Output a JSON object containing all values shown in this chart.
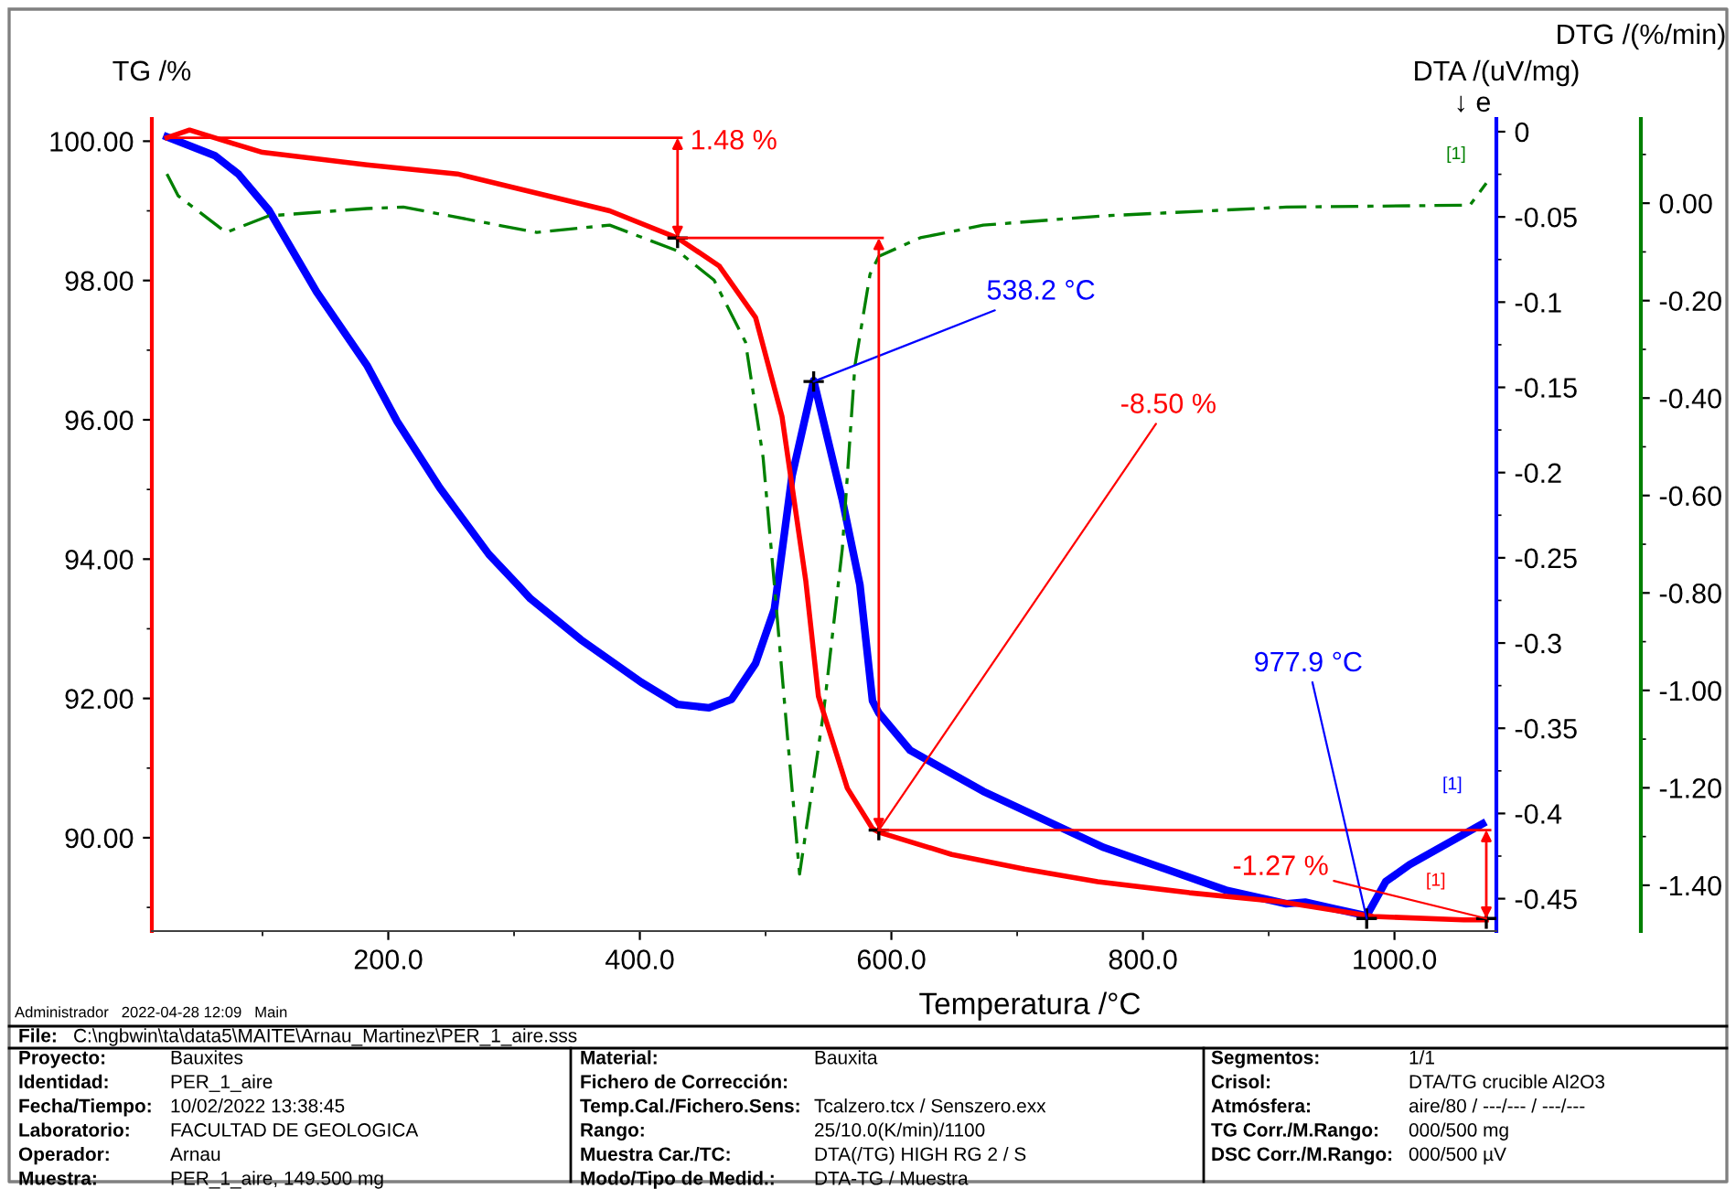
{
  "chart_data": {
    "type": "line",
    "xlabel": "Temperatura /°C",
    "ylabel": "TG /%",
    "y2label": "DTA /(uV/mg)",
    "y3label": "DTG /(%/min)",
    "xlim": [
      12,
      1081
    ],
    "ylim": [
      88.66,
      100.32
    ],
    "y2lim": [
      -0.469,
      0.0075
    ],
    "y3lim": [
      -1.494,
      0.173
    ],
    "xticks": [
      {
        "value": 200,
        "label": "200.0"
      },
      {
        "value": 400,
        "label": "400.0"
      },
      {
        "value": 600,
        "label": "600.0"
      },
      {
        "value": 800,
        "label": "800.0"
      },
      {
        "value": 1000,
        "label": "1000.0"
      }
    ],
    "yticks": [
      {
        "value": 90,
        "label": "90.00"
      },
      {
        "value": 92,
        "label": "92.00"
      },
      {
        "value": 94,
        "label": "94.00"
      },
      {
        "value": 96,
        "label": "96.00"
      },
      {
        "value": 98,
        "label": "98.00"
      },
      {
        "value": 100,
        "label": "100.00"
      }
    ],
    "y2ticks": [
      0,
      -0.05,
      -0.1,
      -0.15,
      -0.2,
      -0.25,
      -0.3,
      -0.35,
      -0.4,
      -0.45
    ],
    "y3ticks": [
      {
        "value": 0,
        "label": "0.00"
      },
      {
        "value": -0.2,
        "label": "-0.20"
      },
      {
        "value": -0.4,
        "label": "-0.40"
      },
      {
        "value": -0.6,
        "label": "-0.60"
      },
      {
        "value": -0.8,
        "label": "-0.80"
      },
      {
        "value": -1.0,
        "label": "-1.00"
      },
      {
        "value": -1.2,
        "label": "-1.20"
      },
      {
        "value": -1.4,
        "label": "-1.40"
      }
    ],
    "grid": false,
    "legend": false,
    "marker": "none",
    "series": [
      {
        "color": "#ff0000",
        "line_style": "solid",
        "x": [
          24,
          42,
          76,
          100,
          183,
          255,
          328,
          376,
          430,
          463,
          492,
          513,
          532,
          542,
          565,
          585,
          590,
          648,
          706,
          764,
          837,
          910,
          983,
          1055,
          1073
        ],
        "values": [
          100.05,
          100.16,
          99.97,
          99.84,
          99.66,
          99.53,
          99.21,
          99.0,
          98.61,
          98.21,
          97.47,
          96.05,
          93.68,
          92.03,
          90.71,
          90.13,
          90.08,
          89.76,
          89.55,
          89.37,
          89.21,
          89.08,
          88.87,
          88.82,
          88.82
        ]
      },
      {
        "color": "#0000ff",
        "line_style": "solid",
        "axis": "y2",
        "x": [
          24,
          62,
          81,
          105,
          143,
          183,
          207,
          241,
          280,
          303,
          313,
          353,
          401,
          430,
          455,
          473,
          492,
          507,
          521,
          538.2,
          561,
          575,
          585,
          590,
          615,
          673,
          769,
          866,
          914,
          929,
          953,
          977.9,
          993,
          1012,
          1070
        ],
        "values": [
          -0.003,
          -0.014,
          -0.025,
          -0.046,
          -0.094,
          -0.137,
          -0.17,
          -0.209,
          -0.248,
          -0.266,
          -0.274,
          -0.298,
          -0.323,
          -0.336,
          -0.338,
          -0.333,
          -0.312,
          -0.28,
          -0.202,
          -0.146,
          -0.216,
          -0.266,
          -0.334,
          -0.341,
          -0.363,
          -0.387,
          -0.42,
          -0.445,
          -0.453,
          -0.452,
          -0.456,
          -0.46,
          -0.44,
          -0.43,
          -0.406
        ]
      },
      {
        "color": "#008000",
        "line_style": "dashed",
        "axis": "y3",
        "x": [
          24,
          33,
          71,
          105,
          183,
          212,
          318,
          376,
          430,
          459,
          484,
          498,
          507,
          517,
          527,
          546,
          561,
          571,
          583,
          590,
          623,
          673,
          769,
          914,
          1060,
          1073
        ],
        "values": [
          0.06,
          0.015,
          -0.06,
          -0.026,
          -0.011,
          -0.008,
          -0.06,
          -0.045,
          -0.098,
          -0.158,
          -0.285,
          -0.522,
          -0.784,
          -1.084,
          -1.377,
          -1.047,
          -0.709,
          -0.334,
          -0.146,
          -0.109,
          -0.071,
          -0.045,
          -0.026,
          -0.008,
          -0.004,
          0.041
        ]
      }
    ],
    "annotations": [
      {
        "text": "1.48 %",
        "x": 430,
        "y": 98.61
      },
      {
        "text": "538.2 °C",
        "x": 538.2,
        "y": 96.55
      },
      {
        "text": "-8.50 %",
        "x": 590,
        "y": 90.11
      },
      {
        "text": "977.9 °C",
        "x": 977.9,
        "y": 88.84
      },
      {
        "text": "-1.27 %",
        "x": 1073,
        "y": 88.84
      },
      "[1]",
      "[1]",
      "[1]",
      "↓ e",
      "Administrador   2022-04-28 12:09   Main",
      "File:",
      "C:\\ngbwin\\ta\\data5\\MAITE\\Arnau_Martinez\\PER_1_aire.sss",
      "Proyecto:",
      "Bauxites",
      "Identidad:",
      "PER_1_aire",
      "Fecha/Tiempo:",
      "10/02/2022 13:38:45",
      "Laboratorio:",
      "FACULTAD DE GEOLOGICA",
      "Operador:",
      "Arnau",
      "Muestra:",
      "PER_1_aire, 149.500 mg",
      "Material:",
      "Bauxita",
      "Fichero de Corrección:",
      "Temp.Cal./Fichero.Sens:",
      "Tcalzero.tcx / Senszero.exx",
      "Rango:",
      "25/10.0(K/min)/1100",
      "Muestra Car./TC:",
      "DTA(/TG) HIGH RG 2 / S",
      "Modo/Tipo de Medid.:",
      "DTA-TG / Muestra",
      "Segmentos:",
      "1/1",
      "Crisol:",
      "DTA/TG crucible Al2O3",
      "Atmósfera:",
      "aire/80 / ---/--- / ---/---",
      "TG Corr./M.Rango:",
      "000/500 mg",
      "DSC Corr./M.Rango:",
      "000/500 µV"
    ]
  }
}
